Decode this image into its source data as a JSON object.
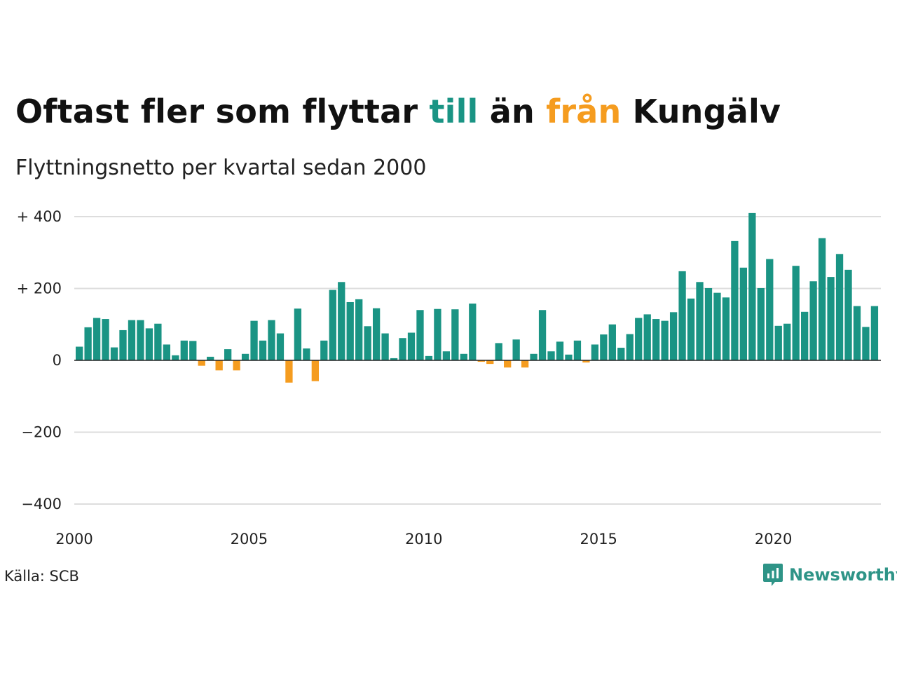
{
  "title": {
    "part1": "Oftast fler som flyttar ",
    "part2": "till",
    "part3": " än ",
    "part4": "från",
    "part5": " Kungälv"
  },
  "subtitle": "Flyttningsnetto per kvartal sedan 2000",
  "source": "Källa: SCB",
  "brand": "Newsworthy",
  "colors": {
    "positive": "#1a9484",
    "negative": "#f59c1f",
    "grid": "#dddddd",
    "zero_line": "#222222"
  },
  "chart_data": {
    "type": "bar",
    "title": "Oftast fler som flyttar till än från Kungälv",
    "subtitle": "Flyttningsnetto per kvartal sedan 2000",
    "xlabel": "",
    "ylabel": "",
    "x_start_year": 2000,
    "periods_per_year": 4,
    "x_ticks": [
      "2000",
      "2005",
      "2010",
      "2015",
      "2020"
    ],
    "y_ticks": [
      {
        "value": 400,
        "label": "+ 400"
      },
      {
        "value": 200,
        "label": "+ 200"
      },
      {
        "value": 0,
        "label": "0"
      },
      {
        "value": -200,
        "label": "−200"
      },
      {
        "value": -400,
        "label": "−400"
      }
    ],
    "ylim": [
      -400,
      400
    ],
    "grid": true,
    "values": [
      38,
      92,
      118,
      115,
      36,
      84,
      112,
      112,
      89,
      102,
      44,
      14,
      55,
      54,
      -15,
      10,
      -28,
      31,
      -28,
      18,
      110,
      55,
      112,
      75,
      -62,
      144,
      33,
      -58,
      55,
      196,
      218,
      162,
      170,
      95,
      145,
      75,
      6,
      62,
      77,
      140,
      12,
      143,
      25,
      142,
      18,
      158,
      -4,
      -10,
      48,
      -20,
      58,
      -20,
      18,
      140,
      25,
      52,
      16,
      55,
      -6,
      44,
      72,
      100,
      35,
      73,
      118,
      128,
      115,
      110,
      134,
      248,
      172,
      218,
      201,
      188,
      175,
      332,
      258,
      410,
      201,
      282,
      96,
      102,
      263,
      135,
      220,
      340,
      232,
      296,
      252,
      151,
      93,
      151
    ]
  }
}
